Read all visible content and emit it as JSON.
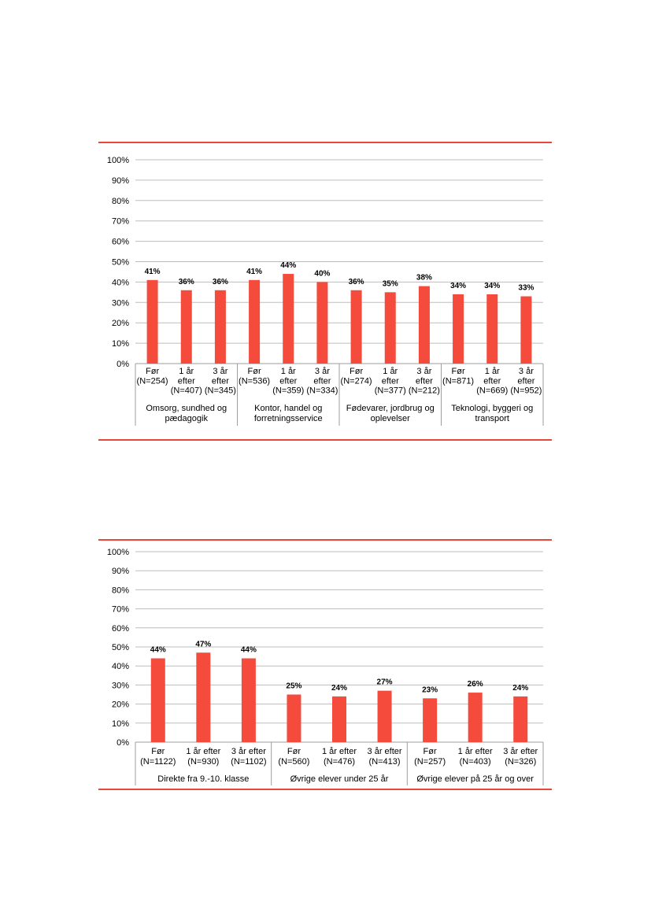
{
  "colors": {
    "bar": "#f44b3c",
    "rule": "#e8483c",
    "grid": "#bdbdbd",
    "text": "#000000"
  },
  "chart_data": [
    {
      "type": "bar",
      "ylim": [
        0,
        100
      ],
      "yticks": [
        "0%",
        "10%",
        "20%",
        "30%",
        "40%",
        "50%",
        "60%",
        "70%",
        "80%",
        "90%",
        "100%"
      ],
      "grid": true,
      "groups": [
        {
          "label": [
            "Omsorg, sundhed og",
            "pædagogik"
          ],
          "bars": [
            {
              "label": [
                "Før",
                "(N=254)"
              ],
              "value": 41,
              "data_label": "41%"
            },
            {
              "label": [
                "1 år",
                "efter",
                "(N=407)"
              ],
              "value": 36,
              "data_label": "36%"
            },
            {
              "label": [
                "3 år",
                "efter",
                "(N=345)"
              ],
              "value": 36,
              "data_label": "36%"
            }
          ]
        },
        {
          "label": [
            "Kontor, handel og",
            "forretningsservice"
          ],
          "bars": [
            {
              "label": [
                "Før",
                "(N=536)"
              ],
              "value": 41,
              "data_label": "41%"
            },
            {
              "label": [
                "1 år",
                "efter",
                "(N=359)"
              ],
              "value": 44,
              "data_label": "44%"
            },
            {
              "label": [
                "3 år",
                "efter",
                "(N=334)"
              ],
              "value": 40,
              "data_label": "40%"
            }
          ]
        },
        {
          "label": [
            "Fødevarer, jordbrug og",
            "oplevelser"
          ],
          "bars": [
            {
              "label": [
                "Før",
                "(N=274)"
              ],
              "value": 36,
              "data_label": "36%"
            },
            {
              "label": [
                "1 år",
                "efter",
                "(N=377)"
              ],
              "value": 35,
              "data_label": "35%"
            },
            {
              "label": [
                "3 år",
                "efter",
                "(N=212)"
              ],
              "value": 38,
              "data_label": "38%"
            }
          ]
        },
        {
          "label": [
            "Teknologi, byggeri og",
            "transport"
          ],
          "bars": [
            {
              "label": [
                "Før",
                "(N=871)"
              ],
              "value": 34,
              "data_label": "34%"
            },
            {
              "label": [
                "1 år",
                "efter",
                "(N=669)"
              ],
              "value": 34,
              "data_label": "34%"
            },
            {
              "label": [
                "3 år",
                "efter",
                "(N=952)"
              ],
              "value": 33,
              "data_label": "33%"
            }
          ]
        }
      ]
    },
    {
      "type": "bar",
      "ylim": [
        0,
        100
      ],
      "yticks": [
        "0%",
        "10%",
        "20%",
        "30%",
        "40%",
        "50%",
        "60%",
        "70%",
        "80%",
        "90%",
        "100%"
      ],
      "grid": true,
      "groups": [
        {
          "label": [
            "Direkte fra 9.-10. klasse"
          ],
          "bars": [
            {
              "label": [
                "Før",
                "(N=1122)"
              ],
              "value": 44,
              "data_label": "44%"
            },
            {
              "label": [
                "1 år efter",
                "(N=930)"
              ],
              "value": 47,
              "data_label": "47%"
            },
            {
              "label": [
                "3 år efter",
                "(N=1102)"
              ],
              "value": 44,
              "data_label": "44%"
            }
          ]
        },
        {
          "label": [
            "Øvrige elever under 25 år"
          ],
          "bars": [
            {
              "label": [
                "Før",
                "(N=560)"
              ],
              "value": 25,
              "data_label": "25%"
            },
            {
              "label": [
                "1 år efter",
                "(N=476)"
              ],
              "value": 24,
              "data_label": "24%"
            },
            {
              "label": [
                "3 år efter",
                "(N=413)"
              ],
              "value": 27,
              "data_label": "27%"
            }
          ]
        },
        {
          "label": [
            "Øvrige elever på 25 år og over"
          ],
          "bars": [
            {
              "label": [
                "Før",
                "(N=257)"
              ],
              "value": 23,
              "data_label": "23%"
            },
            {
              "label": [
                "1 år efter",
                "(N=403)"
              ],
              "value": 26,
              "data_label": "26%"
            },
            {
              "label": [
                "3 år efter",
                "(N=326)"
              ],
              "value": 24,
              "data_label": "24%"
            }
          ]
        }
      ]
    }
  ]
}
